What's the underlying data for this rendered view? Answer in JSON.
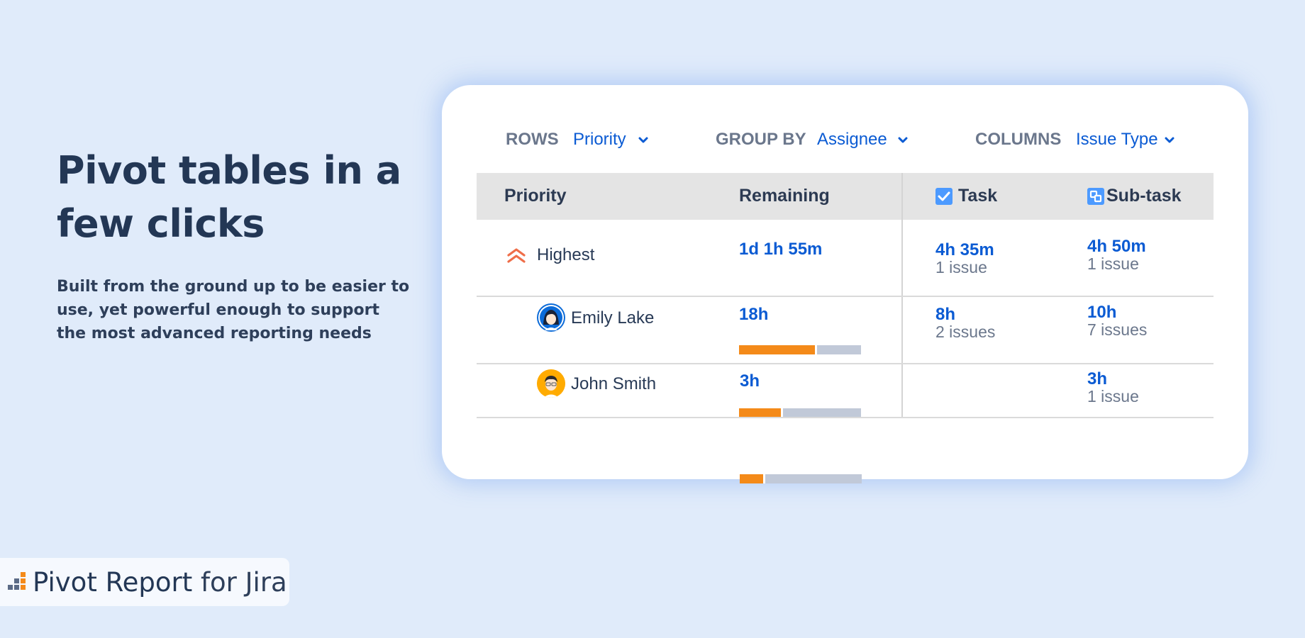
{
  "hero": {
    "title": "Pivot tables in a few clicks",
    "subtitle": "Built from the ground up to be easier to use, yet powerful enough to support the most advanced reporting needs"
  },
  "toolbar": {
    "rows_label": "ROWS",
    "rows_value": "Priority",
    "group_label": "GROUP BY",
    "group_value": "Assignee",
    "columns_label": "COLUMNS",
    "columns_value": "Issue Type"
  },
  "table": {
    "headers": {
      "priority": "Priority",
      "remaining": "Remaining",
      "task": "Task",
      "subtask": "Sub-task"
    },
    "rows": [
      {
        "name": "Highest",
        "icon": "priority-highest-icon",
        "remaining": "1d 1h 55m",
        "progress": 0.64,
        "task_time": "4h 35m",
        "task_count": "1 issue",
        "subtask_time": "4h 50m",
        "subtask_count": "1 issue"
      },
      {
        "name": "Emily Lake",
        "icon": "avatar",
        "remaining": "18h",
        "progress": 0.36,
        "task_time": "8h",
        "task_count": "2 issues",
        "subtask_time": "10h",
        "subtask_count": "7 issues"
      },
      {
        "name": "John Smith",
        "icon": "avatar",
        "remaining": "3h",
        "progress": 0.21,
        "task_time": "",
        "task_count": "",
        "subtask_time": "3h",
        "subtask_count": "1 issue"
      }
    ]
  },
  "brand": {
    "name": "Pivot Report",
    "suffix": "for Jira"
  },
  "colors": {
    "accent": "#0b5bd3",
    "progress": "#f48a19",
    "track": "#c1c9d8",
    "priority": "#ef6e49",
    "background": "#e0ebfa"
  }
}
